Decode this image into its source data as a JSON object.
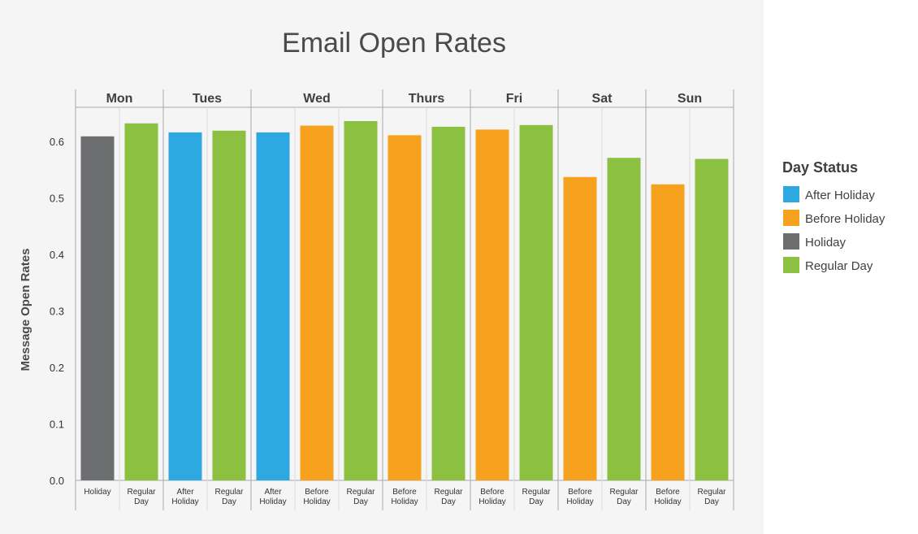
{
  "chart_data": {
    "type": "bar",
    "title": "Email Open Rates",
    "xlabel": "",
    "ylabel": "Message Open Rates",
    "ylim": [
      0,
      0.7
    ],
    "y_ticks": [
      "0.0",
      "0.1",
      "0.2",
      "0.3",
      "0.4",
      "0.5",
      "0.6"
    ],
    "grid": "vertical separators only",
    "legend": {
      "title": "Day Status",
      "position": "right",
      "entries": [
        {
          "label": "After Holiday",
          "color": "#2ea8e0"
        },
        {
          "label": "Before Holiday",
          "color": "#f7a21e"
        },
        {
          "label": "Holiday",
          "color": "#6d6e70"
        },
        {
          "label": "Regular Day",
          "color": "#8cc040"
        }
      ]
    },
    "groups": [
      {
        "day": "Mon",
        "bars": [
          {
            "status": "Holiday",
            "label_lines": [
              "Holiday"
            ],
            "value": 0.609
          },
          {
            "status": "Regular Day",
            "label_lines": [
              "Regular",
              "Day"
            ],
            "value": 0.632
          }
        ]
      },
      {
        "day": "Tues",
        "bars": [
          {
            "status": "After Holiday",
            "label_lines": [
              "After",
              "Holiday"
            ],
            "value": 0.616
          },
          {
            "status": "Regular Day",
            "label_lines": [
              "Regular",
              "Day"
            ],
            "value": 0.619
          }
        ]
      },
      {
        "day": "Wed",
        "bars": [
          {
            "status": "After Holiday",
            "label_lines": [
              "After",
              "Holiday"
            ],
            "value": 0.616
          },
          {
            "status": "Before Holiday",
            "label_lines": [
              "Before",
              "Holiday"
            ],
            "value": 0.628
          },
          {
            "status": "Regular Day",
            "label_lines": [
              "Regular",
              "Day"
            ],
            "value": 0.636
          }
        ]
      },
      {
        "day": "Thurs",
        "bars": [
          {
            "status": "Before Holiday",
            "label_lines": [
              "Before",
              "Holiday"
            ],
            "value": 0.611
          },
          {
            "status": "Regular Day",
            "label_lines": [
              "Regular",
              "Day"
            ],
            "value": 0.626
          }
        ]
      },
      {
        "day": "Fri",
        "bars": [
          {
            "status": "Before Holiday",
            "label_lines": [
              "Before",
              "Holiday"
            ],
            "value": 0.621
          },
          {
            "status": "Regular Day",
            "label_lines": [
              "Regular",
              "Day"
            ],
            "value": 0.629
          }
        ]
      },
      {
        "day": "Sat",
        "bars": [
          {
            "status": "Before Holiday",
            "label_lines": [
              "Before",
              "Holiday"
            ],
            "value": 0.537
          },
          {
            "status": "Regular Day",
            "label_lines": [
              "Regular",
              "Day"
            ],
            "value": 0.571
          }
        ]
      },
      {
        "day": "Sun",
        "bars": [
          {
            "status": "Before Holiday",
            "label_lines": [
              "Before",
              "Holiday"
            ],
            "value": 0.524
          },
          {
            "status": "Regular Day",
            "label_lines": [
              "Regular",
              "Day"
            ],
            "value": 0.569
          }
        ]
      }
    ]
  }
}
